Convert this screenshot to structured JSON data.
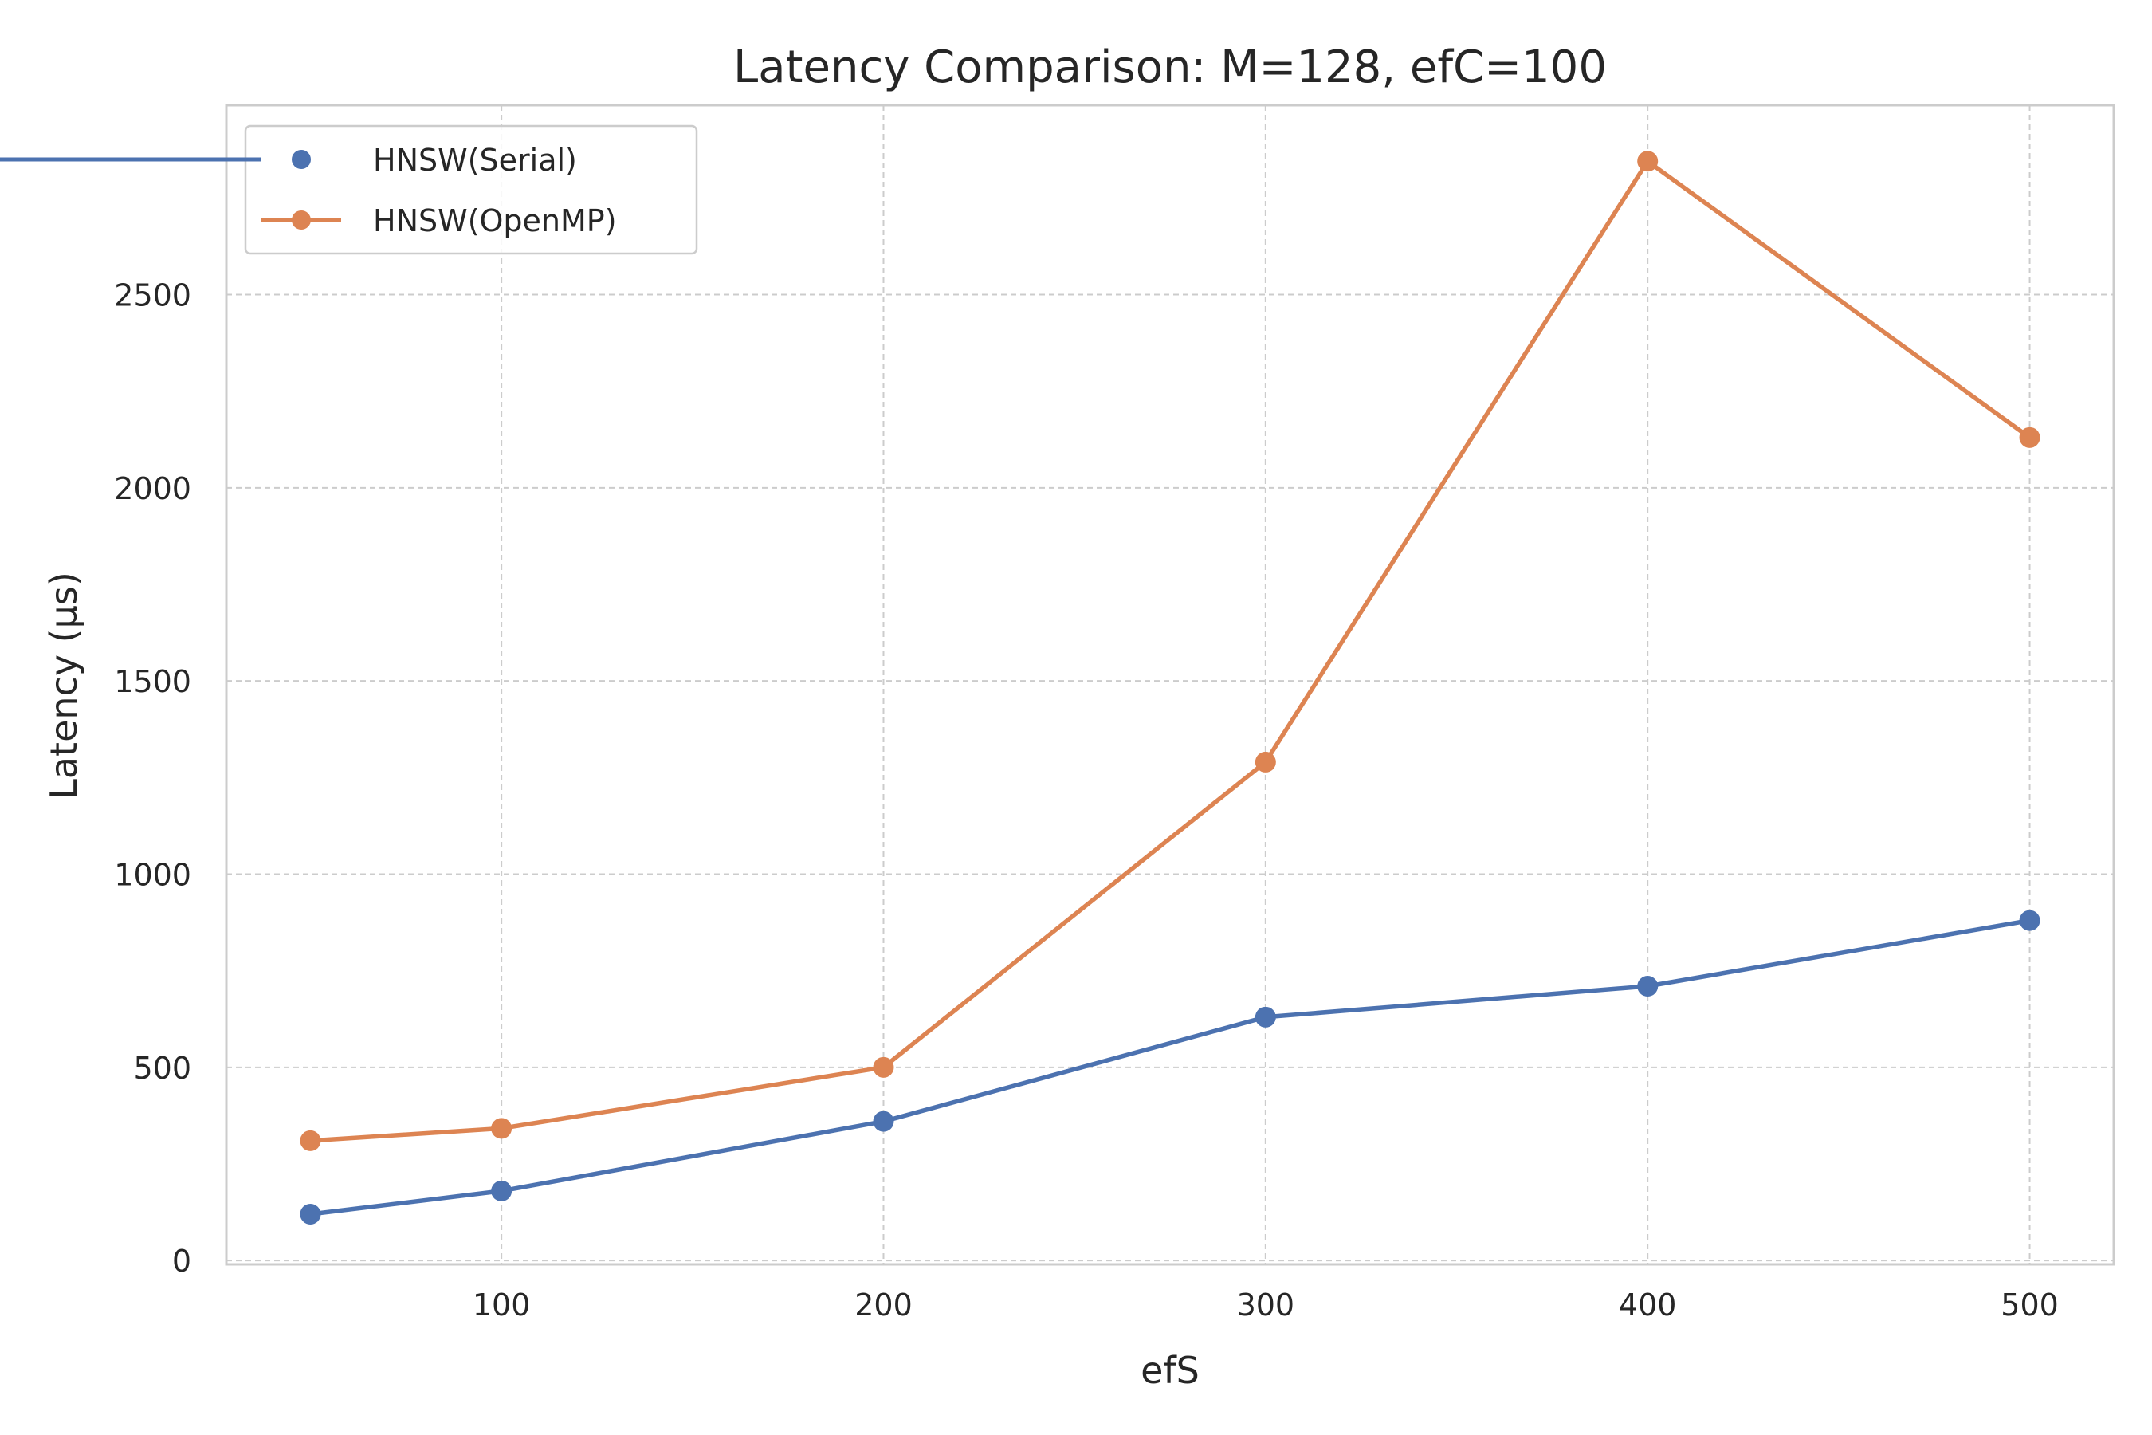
{
  "chart_data": {
    "type": "line",
    "title": "Latency Comparison: M=128, efC=100",
    "xlabel": "efS",
    "ylabel": "Latency (μs)",
    "x": [
      50,
      100,
      200,
      300,
      400,
      500
    ],
    "xticks": [
      100,
      200,
      300,
      400,
      500
    ],
    "yticks": [
      0,
      500,
      1000,
      1500,
      2000,
      2500
    ],
    "xlim": [
      28,
      522
    ],
    "ylim": [
      -10,
      2990
    ],
    "grid": true,
    "legend_position": "top-left",
    "series": [
      {
        "name": "HNSW(Serial)",
        "color": "#4c72b0",
        "values": [
          120,
          180,
          360,
          630,
          710,
          880
        ]
      },
      {
        "name": "HNSW(OpenMP)",
        "color": "#dd8452",
        "values": [
          310,
          342,
          500,
          1290,
          2845,
          2130
        ]
      }
    ]
  }
}
